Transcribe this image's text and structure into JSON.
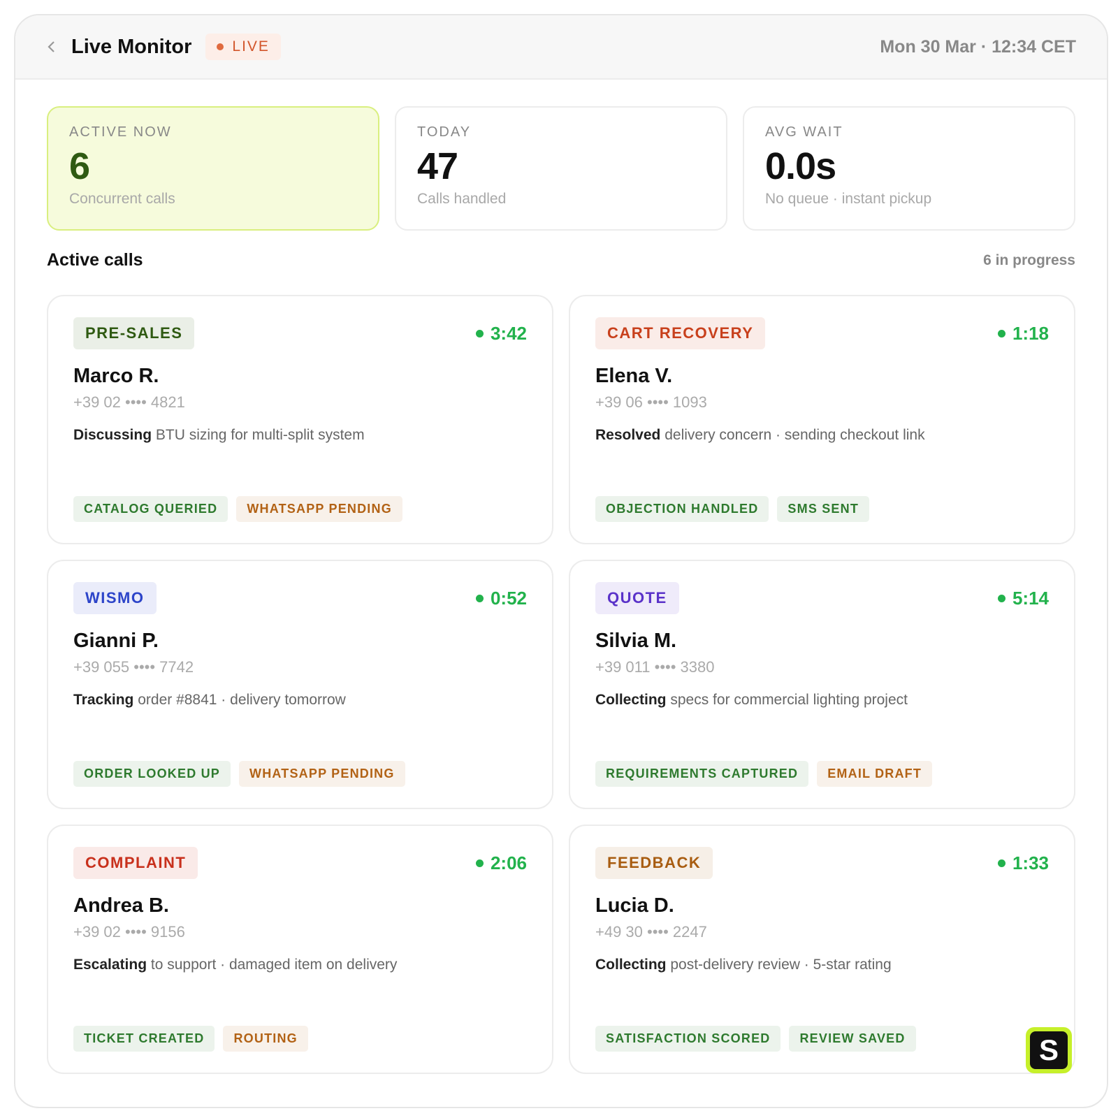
{
  "header": {
    "title": "Live Monitor",
    "badge": "LIVE",
    "datetime": "Mon 30 Mar · 12:34 CET"
  },
  "stats": [
    {
      "label": "ACTIVE NOW",
      "value": "6",
      "caption": "Concurrent calls"
    },
    {
      "label": "TODAY",
      "value": "47",
      "caption": "Calls handled"
    },
    {
      "label": "AVG WAIT",
      "value": "0.0s",
      "caption": "No queue · instant pickup"
    }
  ],
  "section": {
    "title": "Active calls",
    "count": "6 in progress"
  },
  "calls": [
    {
      "category": {
        "text": "PRE-SALES",
        "color": "#2f5a12"
      },
      "time": "3:42",
      "name": "Marco R.",
      "phone": "+39 02 •••• 4821",
      "activity": {
        "verb": "Discussing",
        "detail": "BTU sizing for multi-split system"
      },
      "tags": [
        {
          "text": "CATALOG QUERIED",
          "color": "#2e7a2e"
        },
        {
          "text": "WHATSAPP PENDING",
          "color": "#b26215"
        }
      ]
    },
    {
      "category": {
        "text": "CART RECOVERY",
        "color": "#c8401c"
      },
      "time": "1:18",
      "name": "Elena V.",
      "phone": "+39 06 •••• 1093",
      "activity": {
        "verb": "Resolved",
        "detail": "delivery concern · sending checkout link"
      },
      "tags": [
        {
          "text": "OBJECTION HANDLED",
          "color": "#2e7a2e"
        },
        {
          "text": "SMS SENT",
          "color": "#2e7a2e"
        }
      ]
    },
    {
      "category": {
        "text": "WISMO",
        "color": "#2c44c9"
      },
      "time": "0:52",
      "name": "Gianni P.",
      "phone": "+39 055 •••• 7742",
      "activity": {
        "verb": "Tracking",
        "detail": "order #8841 · delivery tomorrow"
      },
      "tags": [
        {
          "text": "ORDER LOOKED UP",
          "color": "#2e7a2e"
        },
        {
          "text": "WHATSAPP PENDING",
          "color": "#b26215"
        }
      ]
    },
    {
      "category": {
        "text": "QUOTE",
        "color": "#5a32c9"
      },
      "time": "5:14",
      "name": "Silvia M.",
      "phone": "+39 011 •••• 3380",
      "activity": {
        "verb": "Collecting",
        "detail": "specs for commercial lighting project"
      },
      "tags": [
        {
          "text": "REQUIREMENTS CAPTURED",
          "color": "#2e7a2e"
        },
        {
          "text": "EMAIL DRAFT",
          "color": "#b26215"
        }
      ]
    },
    {
      "category": {
        "text": "COMPLAINT",
        "color": "#c8301c"
      },
      "time": "2:06",
      "name": "Andrea B.",
      "phone": "+39 02 •••• 9156",
      "activity": {
        "verb": "Escalating",
        "detail": "to support · damaged item on delivery"
      },
      "tags": [
        {
          "text": "TICKET CREATED",
          "color": "#2e7a2e"
        },
        {
          "text": "ROUTING",
          "color": "#b26215"
        }
      ]
    },
    {
      "category": {
        "text": "FEEDBACK",
        "color": "#a85c10"
      },
      "time": "1:33",
      "name": "Lucia D.",
      "phone": "+49 30 •••• 2247",
      "activity": {
        "verb": "Collecting",
        "detail": "post-delivery review · 5-star rating"
      },
      "tags": [
        {
          "text": "SATISFACTION SCORED",
          "color": "#2e7a2e"
        },
        {
          "text": "REVIEW SAVED",
          "color": "#2e7a2e"
        }
      ]
    }
  ],
  "brand_mark": "S"
}
